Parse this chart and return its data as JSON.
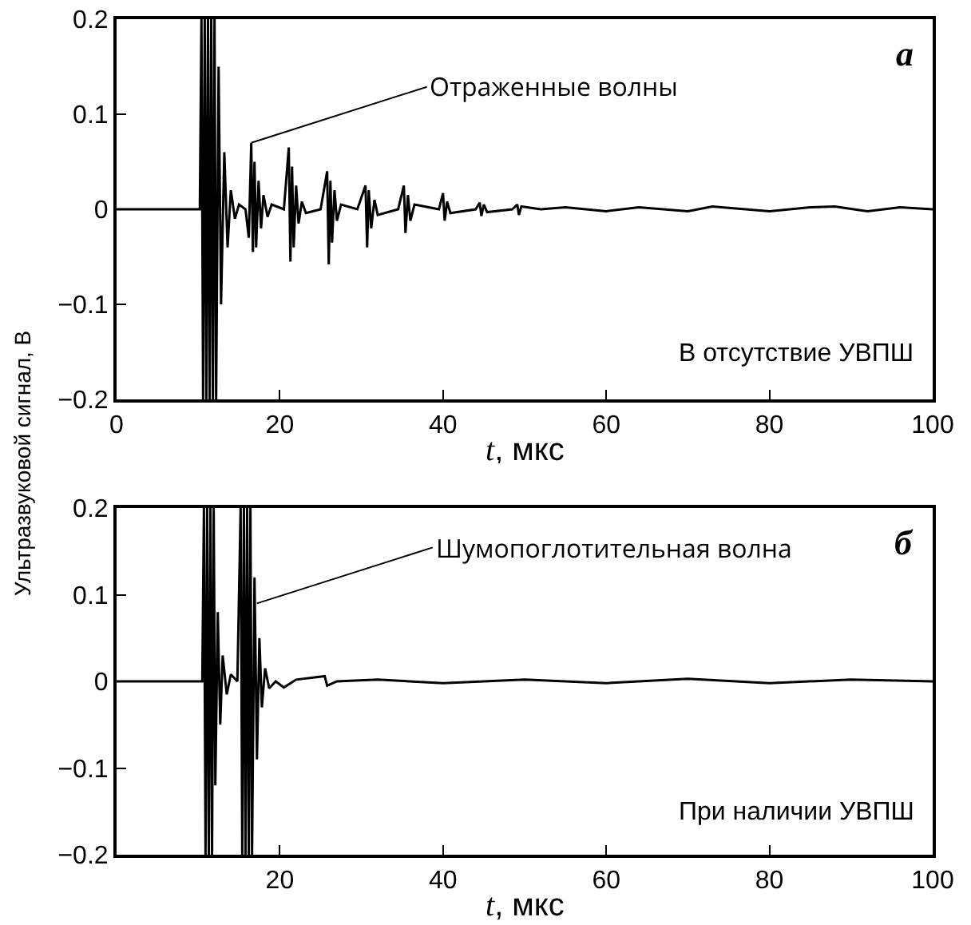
{
  "chart_data": [
    {
      "type": "line",
      "xlabel": "t, мкс",
      "ylabel": "Ультразвуковой сигнал, В",
      "xlim": [
        0,
        100
      ],
      "xticks": [
        0,
        20,
        40,
        60,
        80,
        100
      ],
      "ylim": [
        -0.2,
        0.2
      ],
      "yticks": [
        -0.2,
        -0.1,
        0,
        0.1,
        0.2
      ],
      "grid": false,
      "legend": false,
      "marker": "none",
      "line_style": "solid",
      "annotations": [
        "а",
        "В отсутствие УВПШ",
        {
          "text": "Отраженные волны",
          "x": 16.5,
          "y": 0.07
        }
      ],
      "series": [
        {
          "color": "#000000",
          "x": [
            0,
            10.2,
            10.4,
            10.6,
            10.8,
            11,
            11.2,
            11.4,
            11.6,
            11.8,
            12,
            12.2,
            12.5,
            12.8,
            13.2,
            13.6,
            14,
            14.5,
            15,
            15.8,
            16.2,
            16.5,
            16.7,
            16.9,
            17.1,
            17.4,
            17.7,
            18,
            18.5,
            19,
            20.5,
            21.1,
            21.3,
            21.5,
            21.7,
            22,
            22.3,
            22.7,
            23.2,
            25,
            25.8,
            26,
            26.2,
            26.4,
            26.7,
            27,
            27.5,
            29.5,
            30.5,
            30.7,
            30.9,
            31.2,
            31.6,
            32,
            34.5,
            35.2,
            35.4,
            35.7,
            36,
            36.5,
            39.5,
            40,
            40.2,
            40.5,
            40.9,
            44,
            44.5,
            44.7,
            45,
            45.4,
            48.5,
            49.1,
            49.3,
            49.6,
            52,
            55,
            60,
            64,
            70,
            73,
            80,
            85,
            88,
            92,
            96,
            100
          ],
          "values": [
            0,
            0,
            0.2,
            -0.2,
            0.2,
            -0.2,
            0.2,
            -0.2,
            0.2,
            -0.2,
            0.2,
            -0.2,
            0.15,
            -0.1,
            0.06,
            -0.04,
            0.02,
            -0.01,
            0.005,
            0,
            -0.03,
            0.07,
            -0.045,
            0.05,
            -0.04,
            0.03,
            -0.02,
            0.015,
            -0.008,
            0.005,
            0,
            0.065,
            -0.055,
            0.045,
            -0.04,
            0.025,
            -0.015,
            0.008,
            -0.004,
            0,
            0.04,
            -0.058,
            0.03,
            -0.035,
            0.02,
            -0.012,
            0.005,
            0,
            0.025,
            -0.04,
            0.02,
            -0.02,
            0.01,
            -0.006,
            0,
            0.025,
            -0.025,
            0.015,
            -0.012,
            0.005,
            0,
            0.017,
            -0.012,
            0.008,
            -0.004,
            0,
            0.007,
            -0.007,
            0.005,
            -0.003,
            0,
            0.005,
            -0.006,
            0.003,
            0,
            0.002,
            -0.002,
            0.002,
            -0.002,
            0.003,
            -0.002,
            0.002,
            0.003,
            -0.002,
            0.002,
            0
          ]
        }
      ]
    },
    {
      "type": "line",
      "xlabel": "t, мкс",
      "xlim": [
        0,
        100
      ],
      "xticks": [
        20,
        40,
        60,
        80,
        100
      ],
      "ylim": [
        -0.2,
        0.2
      ],
      "yticks": [
        -0.2,
        -0.1,
        0,
        0.1,
        0.2
      ],
      "grid": false,
      "legend": false,
      "marker": "none",
      "line_style": "solid",
      "annotations": [
        "б",
        "При наличии УВПШ",
        {
          "text": "Шумопоглотительная волна",
          "x": 17.2,
          "y": 0.09
        }
      ],
      "series": [
        {
          "color": "#000000",
          "x": [
            0,
            10.5,
            10.7,
            10.9,
            11.1,
            11.3,
            11.5,
            11.7,
            11.9,
            12.1,
            12.4,
            12.7,
            13,
            13.5,
            14,
            14.8,
            15.2,
            15.4,
            15.6,
            15.8,
            16,
            16.2,
            16.4,
            16.6,
            16.9,
            17.2,
            17.5,
            17.8,
            18.2,
            18.7,
            19.5,
            20.5,
            22,
            25.5,
            25.8,
            27,
            32,
            40,
            50,
            60,
            70,
            80,
            90,
            100
          ],
          "values": [
            0,
            0,
            0.2,
            -0.2,
            0.2,
            -0.2,
            0.2,
            -0.2,
            0.2,
            -0.12,
            0.08,
            -0.05,
            0.03,
            -0.015,
            0.008,
            0,
            0.2,
            -0.2,
            0.2,
            -0.2,
            0.2,
            -0.2,
            0.2,
            -0.2,
            0.12,
            -0.09,
            0.05,
            -0.03,
            0.015,
            -0.008,
            0,
            -0.007,
            0.002,
            0.006,
            -0.005,
            0,
            0.002,
            -0.002,
            0.002,
            -0.002,
            0.003,
            -0.002,
            0.002,
            0
          ]
        }
      ]
    }
  ]
}
